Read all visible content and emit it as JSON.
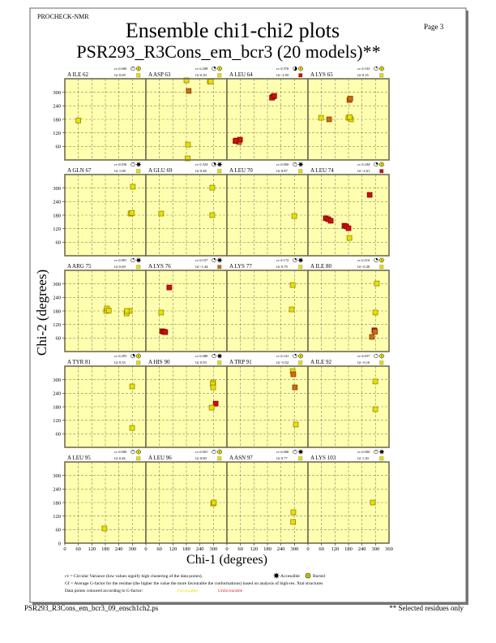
{
  "header": {
    "program": "PROCHECK-NMR",
    "title": "Ensemble chi1-chi2 plots",
    "subtitle": "PSR293_R3Cons_em_bcr3 (20 models)**",
    "page": "Page  3"
  },
  "colors": {
    "panel_bg": "#ffffb0",
    "favourable": "#e8e000",
    "intermediate": "#d06a10",
    "unfavourable": "#cc1010"
  },
  "chart_data": {
    "type": "scatter",
    "xlabel": "Chi-1 (degrees)",
    "ylabel": "Chi-2 (degrees)",
    "xlim": [
      0,
      360
    ],
    "ylim": [
      0,
      360
    ],
    "xticks": [
      "0",
      "60",
      "120",
      "180",
      "240",
      "300"
    ],
    "xtick_last": "360",
    "yticks": [
      "60",
      "120",
      "180",
      "240",
      "300"
    ],
    "ytick_zero": "0",
    "grid": true,
    "panels": [
      {
        "residue": "A ILE 62",
        "cv": "cv 0.000",
        "gf": "Gf 0.09",
        "gf_class": "fav",
        "site": "buried",
        "points": [
          [
            60,
            175,
            "fav"
          ]
        ]
      },
      {
        "residue": "A ASP 63",
        "cv": "cv 0.208",
        "gf": "Gf 0.39",
        "gf_class": "fav",
        "site": "buried",
        "points": [
          [
            180,
            353,
            "fav"
          ],
          [
            190,
            306,
            "mid"
          ],
          [
            284,
            349,
            "fav"
          ],
          [
            288,
            347,
            "fav"
          ],
          [
            187,
            68,
            "fav"
          ],
          [
            185,
            7,
            "fav"
          ]
        ]
      },
      {
        "residue": "A LEU 64",
        "cv": "cv 0.576",
        "gf": "Gf -2.95",
        "gf_class": "unfav",
        "site": "buried",
        "points": [
          [
            205,
            281,
            "unfav"
          ],
          [
            200,
            276,
            "unfav"
          ],
          [
            210,
            284,
            "unfav"
          ],
          [
            43,
            86,
            "unfav"
          ],
          [
            54,
            79,
            "mid"
          ],
          [
            58,
            90,
            "unfav"
          ],
          [
            38,
            84,
            "unfav"
          ]
        ]
      },
      {
        "residue": "A LYS 65",
        "cv": "cv 0.103",
        "gf": "Gf 0.35",
        "gf_class": "fav",
        "site": "buried",
        "points": [
          [
            184,
            266,
            "mid"
          ],
          [
            188,
            272,
            "mid"
          ],
          [
            58,
            187,
            "fav"
          ],
          [
            94,
            180,
            "mid"
          ],
          [
            180,
            187,
            "fav"
          ],
          [
            191,
            180,
            "fav"
          ],
          [
            185,
            190,
            "fav"
          ]
        ]
      },
      {
        "residue": "A GLN 67",
        "cv": "cv 0.036",
        "gf": "Gf 1.08",
        "gf_class": "fav",
        "site": "accessible",
        "points": [
          [
            302,
            306,
            "fav"
          ],
          [
            292,
            187,
            "fav"
          ],
          [
            298,
            190,
            "fav"
          ]
        ]
      },
      {
        "residue": "A GLU 69",
        "cv": "cv 0.324",
        "gf": "Gf 0.48",
        "gf_class": "fav",
        "site": "accessible",
        "points": [
          [
            68,
            187,
            "fav"
          ],
          [
            295,
            302,
            "fav"
          ],
          [
            295,
            180,
            "fav"
          ]
        ]
      },
      {
        "residue": "A LEU 70",
        "cv": "cv 0.000",
        "gf": "Gf 0.87",
        "gf_class": "fav",
        "site": "accessible",
        "points": [
          [
            299,
            176,
            "fav"
          ]
        ]
      },
      {
        "residue": "A LEU 74",
        "cv": "cv 0.244",
        "gf": "Gf -2.61",
        "gf_class": "unfav",
        "site": "buried",
        "points": [
          [
            274,
            270,
            "unfav"
          ],
          [
            79,
            166,
            "unfav"
          ],
          [
            90,
            162,
            "unfav"
          ],
          [
            101,
            155,
            "unfav"
          ],
          [
            162,
            133,
            "unfav"
          ],
          [
            170,
            130,
            "unfav"
          ],
          [
            180,
            122,
            "unfav"
          ],
          [
            184,
            79,
            "fav"
          ]
        ]
      },
      {
        "residue": "A ARG 75",
        "cv": "cv 0.091",
        "gf": "Gf 0.69",
        "gf_class": "fav",
        "site": "accessible",
        "points": [
          [
            184,
            180,
            "fav"
          ],
          [
            187,
            191,
            "fav"
          ],
          [
            195,
            182,
            "fav"
          ],
          [
            274,
            169,
            "fav"
          ],
          [
            288,
            180,
            "fav"
          ],
          [
            276,
            180,
            "fav"
          ]
        ]
      },
      {
        "residue": "A LYS 76",
        "cv": "cv 0.157",
        "gf": "Gf -1.44",
        "gf_class": "mid",
        "site": "accessible",
        "points": [
          [
            104,
            284,
            "unfav"
          ],
          [
            68,
            173,
            "fav"
          ],
          [
            72,
            90,
            "unfav"
          ],
          [
            80,
            88,
            "unfav"
          ],
          [
            86,
            86,
            "unfav"
          ]
        ]
      },
      {
        "residue": "A LYS 77",
        "cv": "cv 0.172",
        "gf": "Gf 0.79",
        "gf_class": "fav",
        "site": "accessible",
        "points": [
          [
            292,
            295,
            "fav"
          ],
          [
            288,
            187,
            "fav"
          ]
        ]
      },
      {
        "residue": "A ILE 80",
        "cv": "cv 0.210",
        "gf": "Gf -0.20",
        "gf_class": "fav",
        "site": "buried",
        "points": [
          [
            306,
            302,
            "fav"
          ],
          [
            299,
            173,
            "fav"
          ],
          [
            295,
            94,
            "unfav"
          ],
          [
            298,
            88,
            "mid"
          ],
          [
            284,
            65,
            "mid"
          ]
        ]
      },
      {
        "residue": "A TYR 81",
        "cv": "cv 0.293",
        "gf": "Gf 0.35",
        "gf_class": "fav",
        "site": "buried",
        "points": [
          [
            299,
            270,
            "fav"
          ],
          [
            299,
            86,
            "fav"
          ]
        ]
      },
      {
        "residue": "A HIS 90",
        "cv": "cv 0.088",
        "gf": "Gf 0.93",
        "gf_class": "fav",
        "site": "accessible",
        "points": [
          [
            299,
            288,
            "fav"
          ],
          [
            297,
            281,
            "fav"
          ],
          [
            299,
            266,
            "fav"
          ],
          [
            310,
            194,
            "unfav"
          ],
          [
            292,
            176,
            "fav"
          ]
        ]
      },
      {
        "residue": "A TRP 91",
        "cv": "cv 0.141",
        "gf": "Gf -0.52",
        "gf_class": "fav",
        "site": "buried",
        "points": [
          [
            292,
            338,
            "fav"
          ],
          [
            295,
            324,
            "mid"
          ],
          [
            302,
            266,
            "mid"
          ],
          [
            306,
            101,
            "fav"
          ]
        ]
      },
      {
        "residue": "A ILE 92",
        "cv": "cv 0.037",
        "gf": "Gf -0.16",
        "gf_class": "fav",
        "site": "buried",
        "points": [
          [
            299,
            292,
            "fav"
          ],
          [
            299,
            169,
            "fav"
          ]
        ]
      },
      {
        "residue": "A LEU 95",
        "cv": "cv 0.000",
        "gf": "Gf 0.46",
        "gf_class": "fav",
        "site": "buried",
        "points": [
          [
            176,
            65,
            "fav"
          ]
        ]
      },
      {
        "residue": "A LEU 96",
        "cv": "cv 0.001",
        "gf": "Gf 0.89",
        "gf_class": "fav",
        "site": "buried",
        "points": [
          [
            299,
            176,
            "fav"
          ],
          [
            302,
            180,
            "fav"
          ]
        ]
      },
      {
        "residue": "A ASN 97",
        "cv": "cv 0.006",
        "gf": "Gf 0.77",
        "gf_class": "fav",
        "site": "accessible",
        "points": [
          [
            295,
            137,
            "fav"
          ],
          [
            294,
            94,
            "fav"
          ]
        ]
      },
      {
        "residue": "A LYS 103",
        "cv": "cv 0.000",
        "gf": "Gf 1.30",
        "gf_class": "fav",
        "site": "accessible",
        "points": [
          [
            288,
            180,
            "fav"
          ]
        ]
      }
    ]
  },
  "legend": {
    "cv_line": "cv = Circular Variance (low values signify high clustering of the data points).",
    "accessible": "Accessible",
    "buried": "Buried",
    "gf_line": "Gf = Average G-factor for the residue (the higher the value the more favourable the conformations) based on analysis of high-res. Xtal structures",
    "colour_line": "Data points coloured according to G-factor:",
    "favourable": "Favourable",
    "unfavourable": "Unfavourable"
  },
  "footer": {
    "filename": "PSR293_R3Cons_em_bcr3_09_ensch1ch2.ps",
    "note": "** Selected residues only"
  }
}
